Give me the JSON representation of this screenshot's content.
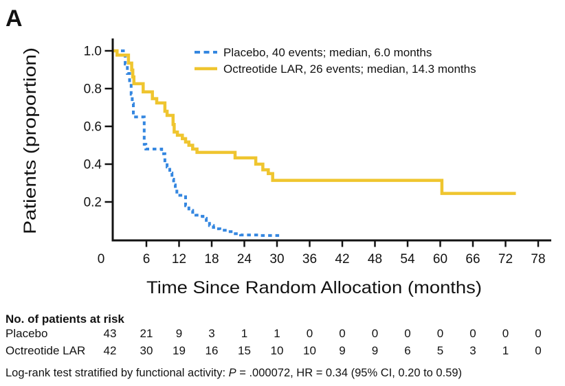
{
  "panel_label": "A",
  "chart_data": {
    "type": "line",
    "subtype": "kaplan-meier-step",
    "title": "",
    "xlabel": "Time Since Random Allocation (months)",
    "ylabel": "Patients (proportion)",
    "xlim": [
      0,
      78
    ],
    "ylim": [
      0,
      1.0
    ],
    "x_ticks": [
      0,
      6,
      12,
      18,
      24,
      30,
      36,
      42,
      48,
      54,
      60,
      66,
      72,
      78
    ],
    "y_tick_labels": [
      "1.0",
      "0.8",
      "0.6",
      "0.4",
      "0.2"
    ],
    "grid": false,
    "legend_position": "top-center-inside",
    "series": [
      {
        "name": "Placebo",
        "label": "Placebo, 40 events; median, 6.0 months",
        "events": 40,
        "median_months": 6.0,
        "color": "#3587E0",
        "line_style": "dashed",
        "steps": [
          [
            0,
            1.0
          ],
          [
            2.1,
            0.93
          ],
          [
            2.5,
            0.88
          ],
          [
            2.9,
            0.83
          ],
          [
            3.2,
            0.77
          ],
          [
            3.4,
            0.72
          ],
          [
            3.6,
            0.65
          ],
          [
            5.6,
            0.505
          ],
          [
            5.9,
            0.48
          ],
          [
            8.8,
            0.455
          ],
          [
            9.4,
            0.41
          ],
          [
            9.8,
            0.385
          ],
          [
            10.3,
            0.353
          ],
          [
            10.7,
            0.32
          ],
          [
            11.0,
            0.29
          ],
          [
            11.3,
            0.27
          ],
          [
            11.6,
            0.235
          ],
          [
            13.2,
            0.18
          ],
          [
            13.8,
            0.155
          ],
          [
            14.5,
            0.145
          ],
          [
            15.1,
            0.13
          ],
          [
            15.7,
            0.124
          ],
          [
            16.4,
            0.113
          ],
          [
            17.0,
            0.095
          ],
          [
            17.6,
            0.075
          ],
          [
            18.3,
            0.065
          ],
          [
            18.9,
            0.058
          ],
          [
            19.5,
            0.05
          ],
          [
            20.8,
            0.043
          ],
          [
            22.0,
            0.032
          ],
          [
            23.3,
            0.025
          ],
          [
            26.7,
            0.022
          ]
        ],
        "end_month": 30.9
      },
      {
        "name": "Octreotide LAR",
        "label": "Octreotide LAR, 26 events; median, 14.3 months",
        "events": 26,
        "median_months": 14.3,
        "color": "#EFC52F",
        "line_style": "solid",
        "steps": [
          [
            0,
            1.0
          ],
          [
            0.6,
            0.977
          ],
          [
            2.7,
            0.935
          ],
          [
            3.3,
            0.898
          ],
          [
            3.5,
            0.862
          ],
          [
            3.7,
            0.826
          ],
          [
            5.4,
            0.783
          ],
          [
            7.1,
            0.747
          ],
          [
            7.9,
            0.724
          ],
          [
            9.4,
            0.68
          ],
          [
            9.8,
            0.658
          ],
          [
            10.9,
            0.61
          ],
          [
            11.1,
            0.57
          ],
          [
            11.7,
            0.553
          ],
          [
            12.6,
            0.535
          ],
          [
            13.2,
            0.517
          ],
          [
            13.8,
            0.5
          ],
          [
            14.5,
            0.48
          ],
          [
            15.3,
            0.462
          ],
          [
            22.3,
            0.433
          ],
          [
            26.1,
            0.4
          ],
          [
            27.4,
            0.37
          ],
          [
            28.4,
            0.35
          ],
          [
            29.2,
            0.314
          ],
          [
            60.3,
            0.245
          ]
        ],
        "end_month": 73.9
      }
    ]
  },
  "risk_table": {
    "title": "No. of patients at risk",
    "time_points": [
      0,
      6,
      12,
      18,
      24,
      30,
      36,
      42,
      48,
      54,
      60,
      66,
      72,
      78
    ],
    "rows": [
      {
        "label": "Placebo",
        "counts": [
          43,
          21,
          9,
          3,
          1,
          1,
          0,
          0,
          0,
          0,
          0,
          0,
          0,
          0
        ]
      },
      {
        "label": "Octreotide LAR",
        "counts": [
          42,
          30,
          19,
          16,
          15,
          10,
          10,
          9,
          9,
          6,
          5,
          3,
          1,
          0
        ]
      }
    ]
  },
  "footnote": {
    "prefix": "Log-rank test stratified by functional activity: ",
    "stat_symbol": "P",
    "suffix": " = .000072, HR = 0.34 (95% CI, 0.20 to 0.59)"
  }
}
